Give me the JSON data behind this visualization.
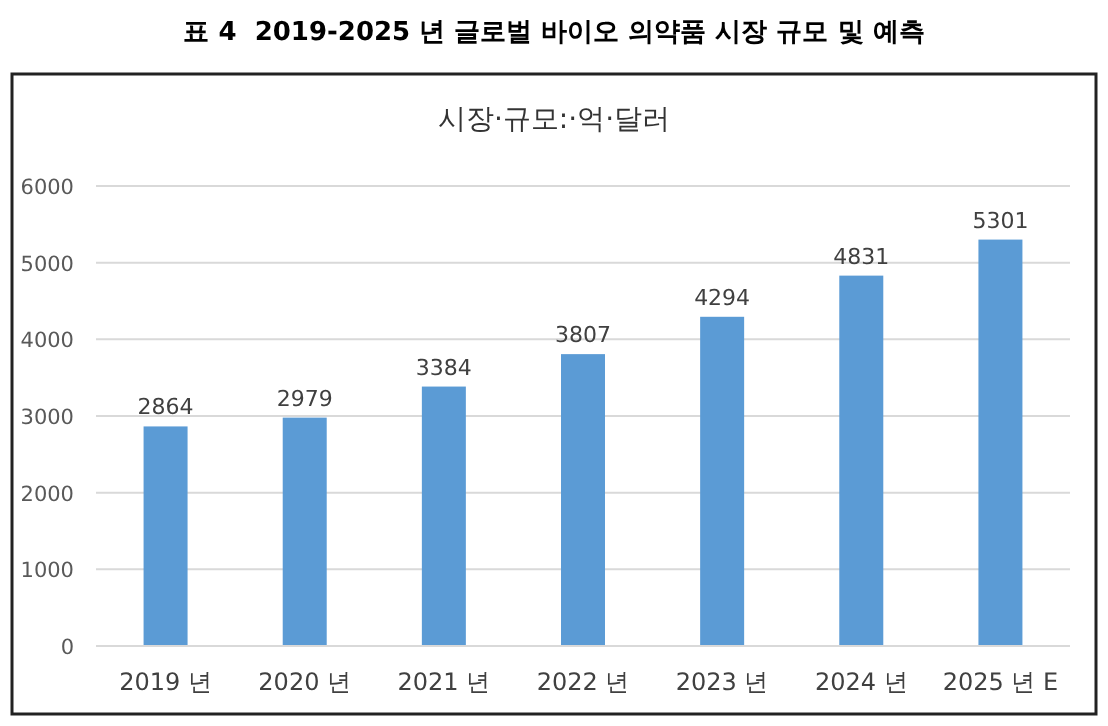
{
  "chart_data": {
    "type": "bar",
    "title": "표 4  2019-2025 년 글로벌 바이오 의약품 시장 규모 및 예측",
    "subtitle": "시장·규모:·억·달러",
    "categories": [
      "2019 년",
      "2020 년",
      "2021 년",
      "2022 년",
      "2023 년",
      "2024 년",
      "2025 년 E"
    ],
    "values": [
      2864,
      2979,
      3384,
      3807,
      4294,
      4831,
      5301
    ],
    "color": "#5b9bd5",
    "ylim": [
      0,
      6000
    ],
    "yticks": [
      0,
      1000,
      2000,
      3000,
      4000,
      5000,
      6000
    ],
    "grid": "y",
    "data_labels": true
  }
}
